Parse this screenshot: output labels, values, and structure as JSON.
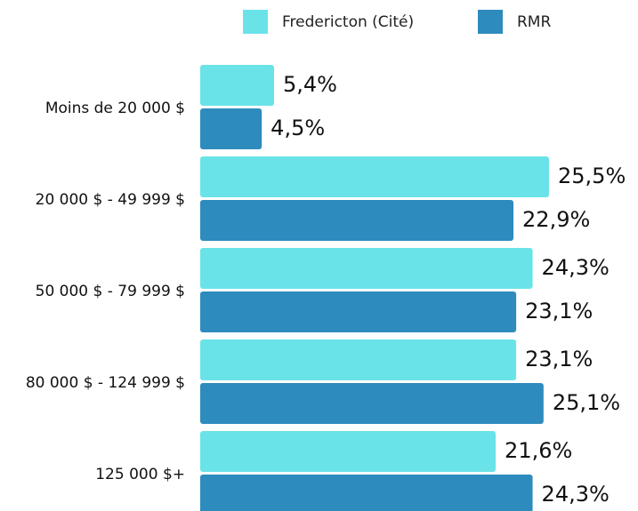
{
  "chart_data": {
    "type": "bar",
    "orientation": "horizontal",
    "categories": [
      "Moins de 20 000 $",
      "20 000 $ - 49 999 $",
      "50 000 $ - 79 999 $",
      "80 000 $ - 124 999 $",
      "125 000 $+"
    ],
    "series": [
      {
        "name": "Fredericton (Cité)",
        "color": "#6ae3e8",
        "values": [
          5.4,
          25.5,
          24.3,
          23.1,
          21.6
        ],
        "value_labels": [
          "5,4%",
          "25,5%",
          "24,3%",
          "23,1%",
          "21,6%"
        ]
      },
      {
        "name": "RMR",
        "color": "#2e8bbd",
        "values": [
          4.5,
          22.9,
          23.1,
          25.1,
          24.3
        ],
        "value_labels": [
          "4,5%",
          "22,9%",
          "23,1%",
          "25,1%",
          "24,3%"
        ]
      }
    ],
    "legend": "top"
  }
}
